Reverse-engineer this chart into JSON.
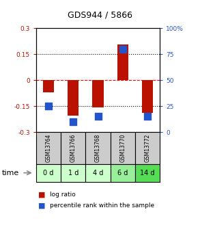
{
  "title": "GDS944 / 5866",
  "samples": [
    "GSM13764",
    "GSM13766",
    "GSM13768",
    "GSM13770",
    "GSM13772"
  ],
  "time_labels": [
    "0 d",
    "1 d",
    "4 d",
    "6 d",
    "14 d"
  ],
  "log_ratios": [
    -0.07,
    -0.205,
    -0.155,
    0.205,
    -0.19
  ],
  "percentile_ranks": [
    25.0,
    10.0,
    15.0,
    80.0,
    15.0
  ],
  "ylim_left": [
    -0.3,
    0.3
  ],
  "ylim_right": [
    0,
    100
  ],
  "red_color": "#BB1100",
  "blue_color": "#2255CC",
  "bar_width": 0.45,
  "dot_size": 50,
  "grid_values": [
    -0.15,
    0.0,
    0.15
  ],
  "right_ticks": [
    0,
    25,
    50,
    75,
    100
  ],
  "right_tick_labels": [
    "0",
    "25",
    "50",
    "75",
    "100%"
  ],
  "left_ticks": [
    -0.3,
    -0.15,
    0.0,
    0.15,
    0.3
  ],
  "left_tick_labels": [
    "-0.3",
    "-0.15",
    "0",
    "0.15",
    "0.3"
  ],
  "sample_box_color": "#CCCCCC",
  "time_box_colors": [
    "#CCFFCC",
    "#CCFFCC",
    "#CCFFCC",
    "#99EE99",
    "#55DD55"
  ],
  "legend_log_ratio": "log ratio",
  "legend_percentile": "percentile rank within the sample",
  "time_label": "time"
}
